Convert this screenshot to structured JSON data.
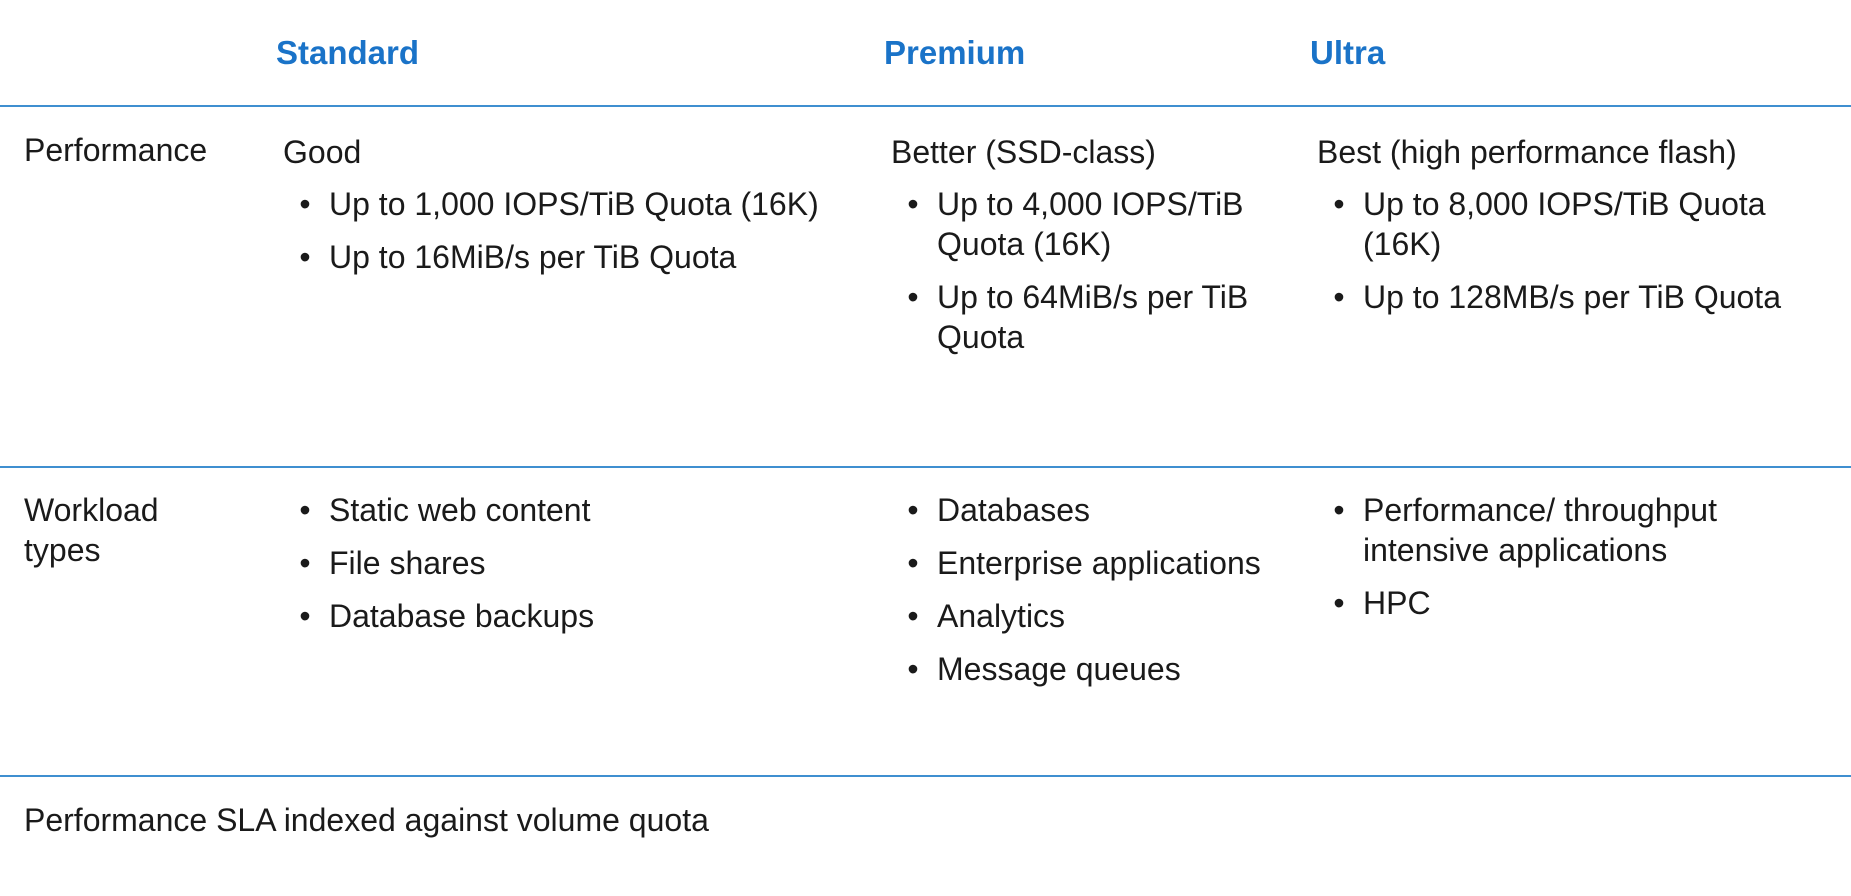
{
  "headers": {
    "standard": "Standard",
    "premium": "Premium",
    "ultra": "Ultra"
  },
  "rows": {
    "performance": {
      "label": "Performance",
      "standard": {
        "title": "Good",
        "bullets": [
          "Up to 1,000 IOPS/TiB Quota (16K)",
          "Up to 16MiB/s per TiB Quota"
        ]
      },
      "premium": {
        "title": "Better (SSD-class)",
        "bullets": [
          "Up to 4,000 IOPS/TiB Quota (16K)",
          "Up to 64MiB/s per TiB Quota"
        ]
      },
      "ultra": {
        "title": "Best (high performance flash)",
        "bullets": [
          "Up to 8,000 IOPS/TiB Quota (16K)",
          "Up to 128MB/s per TiB Quota"
        ]
      }
    },
    "workload": {
      "label": "Workload types",
      "standard": {
        "bullets": [
          "Static web content",
          "File shares",
          "Database backups"
        ]
      },
      "premium": {
        "bullets": [
          "Databases",
          "Enterprise applications",
          "Analytics",
          "Message queues"
        ]
      },
      "ultra": {
        "bullets": [
          "Performance/ throughput intensive applications",
          "HPC"
        ]
      }
    }
  },
  "bullet_glyph": "•",
  "footnote": "Performance SLA indexed against volume quota",
  "colors": {
    "header": "#1a73c8",
    "rule": "#3f8fd0"
  }
}
